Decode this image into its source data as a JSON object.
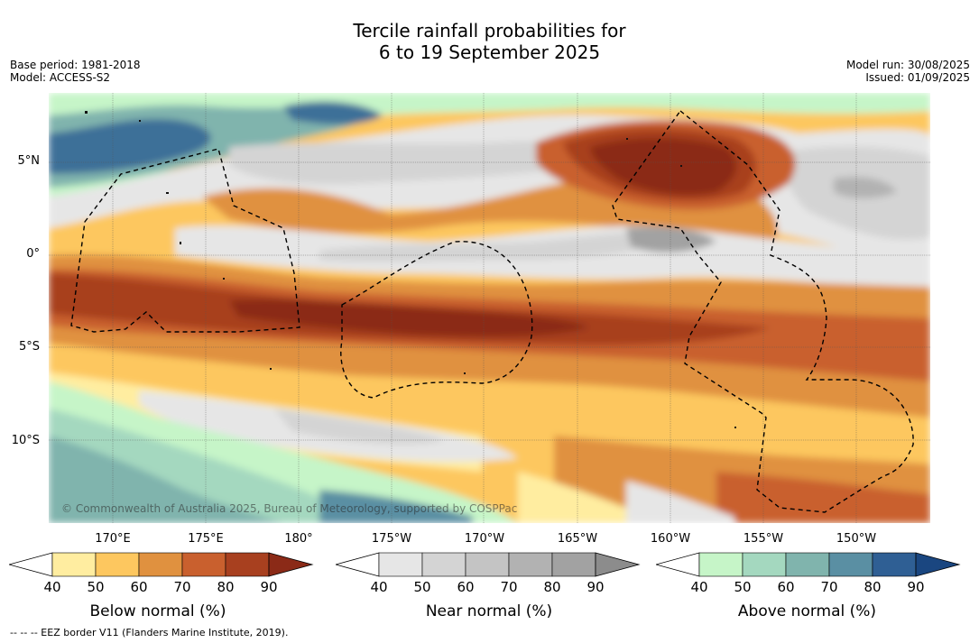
{
  "title_line1": "Tercile rainfall probabilities for",
  "title_line2": "6 to 19 September 2025",
  "base_period": "Base period: 1981-2018",
  "model": "Model: ACCESS-S2",
  "model_run": "Model run: 30/08/2025",
  "issued": "Issued: 01/09/2025",
  "lat_labels": [
    "5°N",
    "0°",
    "5°S",
    "10°S"
  ],
  "lon_labels": [
    "170°E",
    "175°E",
    "180°",
    "175°W",
    "170°W",
    "165°W",
    "160°W",
    "155°W",
    "150°W"
  ],
  "copyright": "© Commonwealth of Australia 2025, Bureau of Meteorology, supported by COSPPac",
  "footnote": "-- -- -- EEZ border V11 (Flanders Marine Institute, 2019).",
  "colorbars": [
    {
      "label": "Below normal (%)",
      "ticks": [
        "40",
        "50",
        "60",
        "70",
        "80",
        "90"
      ],
      "colors": [
        "#ffeda0",
        "#fdc75f",
        "#e0913f",
        "#c9602e",
        "#a8401f",
        "#8b2a17"
      ]
    },
    {
      "label": "Near normal (%)",
      "ticks": [
        "40",
        "50",
        "60",
        "70",
        "80",
        "90"
      ],
      "colors": [
        "#e6e6e6",
        "#d4d4d4",
        "#c4c4c4",
        "#b2b2b2",
        "#a2a2a2",
        "#8c8c8c"
      ]
    },
    {
      "label": "Above normal (%)",
      "ticks": [
        "40",
        "50",
        "60",
        "70",
        "80",
        "90"
      ],
      "colors": [
        "#c6f5c8",
        "#a4d8bf",
        "#80b4ad",
        "#5a8fa3",
        "#2f5f94",
        "#1a4680"
      ]
    }
  ]
}
